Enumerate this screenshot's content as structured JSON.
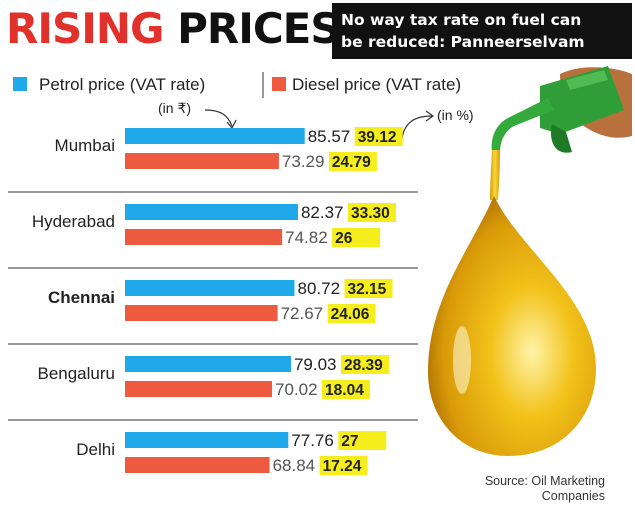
{
  "header": {
    "headline_word_1": "RISING",
    "headline_word_2": "PRICES",
    "banner_line_1": "No way tax rate on fuel can",
    "banner_line_2": "be reduced: Panneerselvam"
  },
  "colors": {
    "petrol": "#1fa8ea",
    "diesel": "#ee5a3f",
    "vat_highlight": "#f5ee1c",
    "headline_accent": "#e0312b"
  },
  "chart_data": {
    "type": "bar",
    "orientation": "horizontal",
    "categories": [
      "Mumbai",
      "Hyderabad",
      "Chennai",
      "Bengaluru",
      "Delhi"
    ],
    "series": [
      {
        "name": "Petrol price (VAT rate)",
        "values": [
          85.57,
          82.37,
          80.72,
          79.03,
          77.76
        ],
        "labels": [
          "85.57",
          "82.37",
          "80.72",
          "79.03",
          "77.76"
        ],
        "vat_rate": [
          "39.12",
          "33.30",
          "32.15",
          "28.39",
          "27"
        ],
        "color": "#1fa8ea"
      },
      {
        "name": "Diesel price (VAT rate)",
        "values": [
          73.29,
          74.82,
          72.67,
          70.02,
          68.84
        ],
        "labels": [
          "73.29",
          "74.82",
          "72.67",
          "70.02",
          "68.84"
        ],
        "vat_rate": [
          "24.79",
          "26",
          "24.06",
          "18.04",
          "17.24"
        ],
        "color": "#ee5a3f"
      }
    ],
    "bold_category": "Chennai",
    "price_unit": "(in ₹)",
    "vat_unit": "(in %)",
    "source_line_1": "Source: Oil Marketing",
    "source_line_2": "Companies"
  }
}
